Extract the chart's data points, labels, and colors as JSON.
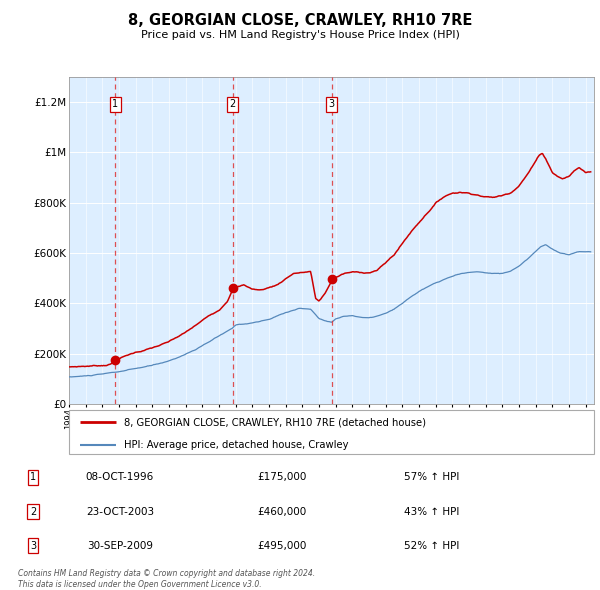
{
  "title": "8, GEORGIAN CLOSE, CRAWLEY, RH10 7RE",
  "subtitle": "Price paid vs. HM Land Registry's House Price Index (HPI)",
  "sales": [
    {
      "num": 1,
      "date": "08-OCT-1996",
      "year": 1996.77,
      "price": 175000,
      "hpi_pct": "57% ↑ HPI"
    },
    {
      "num": 2,
      "date": "23-OCT-2003",
      "year": 2003.81,
      "price": 460000,
      "hpi_pct": "43% ↑ HPI"
    },
    {
      "num": 3,
      "date": "30-SEP-2009",
      "year": 2009.75,
      "price": 495000,
      "hpi_pct": "52% ↑ HPI"
    }
  ],
  "legend_line1": "8, GEORGIAN CLOSE, CRAWLEY, RH10 7RE (detached house)",
  "legend_line2": "HPI: Average price, detached house, Crawley",
  "footer": "Contains HM Land Registry data © Crown copyright and database right 2024.\nThis data is licensed under the Open Government Licence v3.0.",
  "red_color": "#cc0000",
  "blue_color": "#5588bb",
  "bg_color": "#ddeeff",
  "ylim": [
    0,
    1300000
  ],
  "xlim_start": 1994.0,
  "xlim_end": 2025.5,
  "yticks": [
    0,
    200000,
    400000,
    600000,
    800000,
    1000000,
    1200000
  ],
  "ytick_labels": [
    "£0",
    "£200K",
    "£400K",
    "£600K",
    "£800K",
    "£1M",
    "£1.2M"
  ]
}
